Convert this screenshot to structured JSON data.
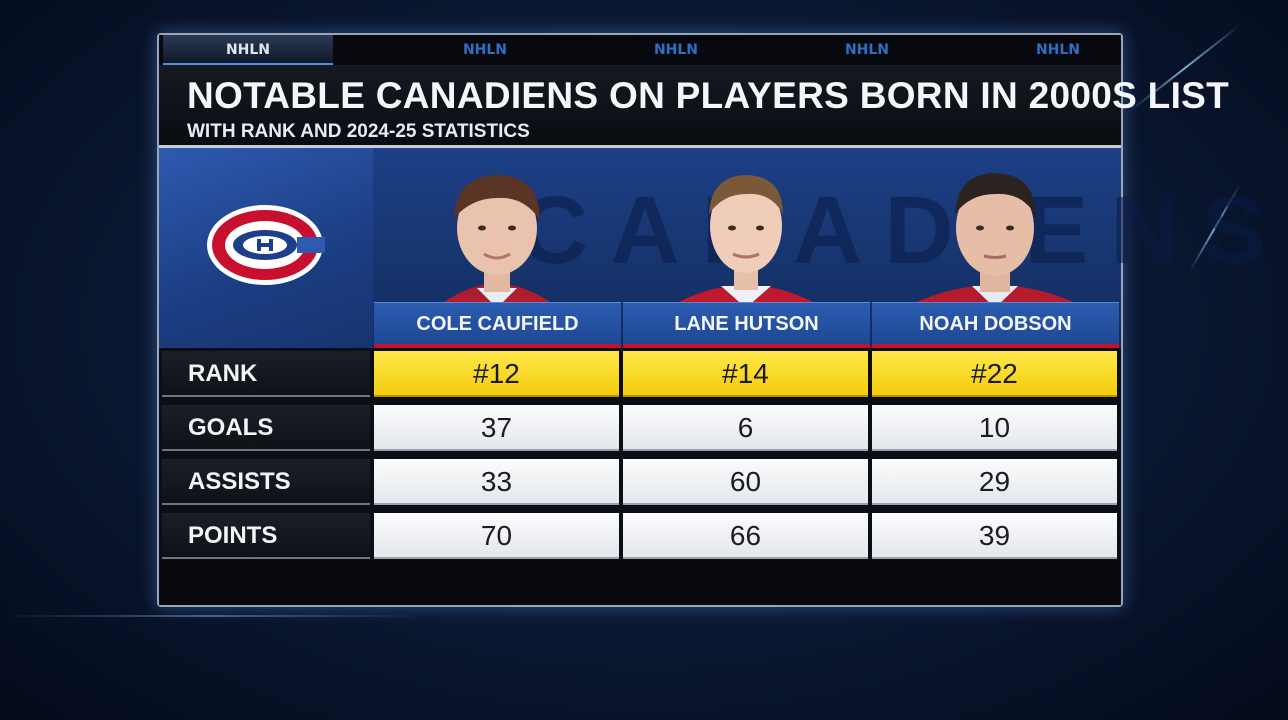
{
  "tabs": [
    "NHLN",
    "NHLN",
    "NHLN",
    "NHLN",
    "NHLN"
  ],
  "header": {
    "title": "NOTABLE CANADIENS ON PLAYERS BORN IN 2000S LIST",
    "subtitle": "WITH RANK AND 2024-25 STATISTICS"
  },
  "hero": {
    "watermark": "CANADIENS",
    "logo_icon": "canadiens-logo-icon"
  },
  "players": [
    {
      "name": "COLE CAUFIELD"
    },
    {
      "name": "LANE HUTSON"
    },
    {
      "name": "NOAH DOBSON"
    }
  ],
  "rows": [
    {
      "label": "RANK",
      "values": [
        "#12",
        "#14",
        "#22"
      ]
    },
    {
      "label": "GOALS",
      "values": [
        "37",
        "6",
        "10"
      ]
    },
    {
      "label": "ASSISTS",
      "values": [
        "33",
        "60",
        "29"
      ]
    },
    {
      "label": "POINTS",
      "values": [
        "70",
        "66",
        "39"
      ]
    }
  ],
  "colors": {
    "rank_highlight": "#f3cc0e",
    "team_blue": "#1d4691",
    "team_red": "#c8102e"
  }
}
